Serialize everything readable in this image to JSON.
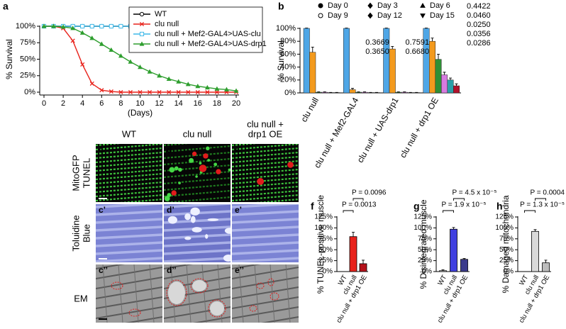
{
  "chart_data": [
    {
      "type": "line",
      "panel": "a",
      "ylabel": "% Survival",
      "xlabel": "(Days)",
      "x": [
        0,
        1,
        2,
        3,
        4,
        5,
        6,
        7,
        8,
        9,
        10,
        11,
        12,
        13,
        14,
        15,
        16,
        17,
        18,
        19,
        20
      ],
      "xlim": [
        0,
        20
      ],
      "xticks": [
        0,
        2,
        4,
        6,
        8,
        10,
        12,
        14,
        16,
        18,
        20
      ],
      "ylim": [
        0,
        100
      ],
      "yticks": [
        {
          "value": 0,
          "label": "0%"
        },
        {
          "value": 25,
          "label": "25%"
        },
        {
          "value": 50,
          "label": "50%"
        },
        {
          "value": 75,
          "label": "75%"
        },
        {
          "value": 100,
          "label": "100%"
        }
      ],
      "legend": "upper right",
      "series": [
        {
          "name": "WT",
          "color": "#000000",
          "marker": "open-circle",
          "values": [
            100,
            100,
            100,
            100,
            100,
            100,
            100,
            100,
            100,
            100,
            100,
            100,
            100,
            100,
            100,
            100,
            100,
            100,
            100,
            100,
            100
          ]
        },
        {
          "name": "clu null",
          "color": "#e8221b",
          "marker": "x",
          "values": [
            100,
            100,
            97,
            78,
            42,
            13,
            3,
            1,
            0,
            0,
            0,
            0,
            0,
            0,
            0,
            0,
            0,
            0,
            0,
            0,
            0
          ]
        },
        {
          "name": "clu null + Mef2-GAL4>UAS-clu",
          "color": "#3db8e8",
          "marker": "open-square",
          "values": [
            100,
            100,
            100,
            100,
            100,
            100,
            100,
            100,
            100,
            100,
            100,
            100,
            100,
            100,
            100,
            100,
            100,
            100,
            100,
            100,
            100
          ]
        },
        {
          "name": "clu null + Mef2-GAL4>UAS-drp1",
          "color": "#2e9e2e",
          "marker": "triangle-up",
          "values": [
            100,
            100,
            99,
            97,
            90,
            82,
            73,
            64,
            55,
            46,
            38,
            31,
            25,
            20,
            16,
            12,
            9,
            7,
            5,
            4,
            2
          ]
        }
      ]
    },
    {
      "type": "bar",
      "panel": "b",
      "ylabel": "% Survival",
      "categories": [
        "clu null",
        "clu null + Mef2-GAL4",
        "clu null + UAS-drp1",
        "clu null + drp1 OE"
      ],
      "ylim": [
        0,
        100
      ],
      "yticks": [
        {
          "value": 0,
          "label": "0%"
        },
        {
          "value": 20,
          "label": "20%"
        },
        {
          "value": 40,
          "label": "40%"
        },
        {
          "value": 60,
          "label": "60%"
        },
        {
          "value": 80,
          "label": "80%"
        },
        {
          "value": 100,
          "label": "100%"
        }
      ],
      "legend": "top",
      "series": [
        {
          "name": "Day 0",
          "color": "#4ea6e6",
          "marker": "circle",
          "values": [
            100,
            100,
            100,
            100
          ],
          "errors": [
            0.5,
            0.5,
            0.5,
            0.5
          ]
        },
        {
          "name": "Day 3",
          "color": "#f39a1d",
          "marker": "diamond",
          "values": [
            63,
            5,
            68,
            80
          ],
          "errors": [
            8,
            2,
            4,
            5
          ]
        },
        {
          "name": "Day 6",
          "color": "#2f8f35",
          "marker": "triangle-up",
          "values": [
            1,
            1,
            1,
            52
          ],
          "errors": [
            0.5,
            0.5,
            0.5,
            8
          ]
        },
        {
          "name": "Day 9",
          "color": "#d77be0",
          "marker": "open-circle",
          "values": [
            1,
            1,
            1,
            28
          ],
          "errors": [
            0.5,
            0.5,
            0.5,
            4
          ]
        },
        {
          "name": "Day 12",
          "color": "#2a9fa8",
          "marker": "diamond",
          "values": [
            0.5,
            0.5,
            0.5,
            20
          ],
          "errors": [
            0.3,
            0.3,
            0.3,
            3
          ]
        },
        {
          "name": "Day 15",
          "color": "#b3122c",
          "marker": "triangle-down",
          "values": [
            0.5,
            0.5,
            0.5,
            11
          ],
          "errors": [
            0.3,
            0.3,
            0.3,
            3
          ]
        }
      ],
      "p_values": [
        [],
        [
          "0.3669",
          "0.3650"
        ],
        [
          "0.7591",
          "0.6680"
        ],
        [
          "0.4422",
          "0.0460",
          "0.0250",
          "0.0356",
          "0.0286"
        ]
      ]
    },
    {
      "type": "bar",
      "panel": "f",
      "ylabel": "% TUNEL-positive muscle",
      "ylabel_color": "#e8221b",
      "categories": [
        "WT",
        "clu null",
        "clu null + drp1 OE"
      ],
      "values": [
        0,
        80,
        18
      ],
      "errors": [
        0,
        10,
        8
      ],
      "colors": [
        "#ffffff",
        "#e8221b",
        "#b5121b"
      ],
      "ylim": [
        0,
        125
      ],
      "yticks": [
        {
          "value": 0,
          "label": "0%"
        },
        {
          "value": 25,
          "label": "25%"
        },
        {
          "value": 50,
          "label": "50%"
        },
        {
          "value": 75,
          "label": "75%"
        },
        {
          "value": 100,
          "label": "100%"
        },
        {
          "value": 125,
          "label": "125%"
        }
      ],
      "p_values": [
        "P = 0.0013",
        "P = 0.0096"
      ]
    },
    {
      "type": "bar",
      "panel": "g",
      "ylabel": "% Disintegrated muscle",
      "ylabel_color": "#6060e0",
      "categories": [
        "WT",
        "clu null",
        "clu null + drp1 OE"
      ],
      "values": [
        2,
        97,
        28
      ],
      "errors": [
        2,
        4,
        2
      ],
      "colors": [
        "#ffffff",
        "#4040e0",
        "#3c3c8c"
      ],
      "ylim": [
        0,
        125
      ],
      "yticks": [
        {
          "value": 0,
          "label": "0%"
        },
        {
          "value": 25,
          "label": "25%"
        },
        {
          "value": 50,
          "label": "50%"
        },
        {
          "value": 75,
          "label": "75%"
        },
        {
          "value": 100,
          "label": "100%"
        },
        {
          "value": 125,
          "label": "125%"
        }
      ],
      "p_values": [
        "P = 1.9 x 10⁻⁵",
        "P = 4.5 x 10⁻⁵"
      ]
    },
    {
      "type": "bar",
      "panel": "h",
      "ylabel": "% Damaged mitochondria",
      "ylabel_color": "#8a8a8a",
      "categories": [
        "WT",
        "clu null",
        "clu null + drp1 OE"
      ],
      "values": [
        0,
        92,
        20
      ],
      "errors": [
        0,
        4,
        6
      ],
      "colors": [
        "#ffffff",
        "#d9d9d9",
        "#bdbdbd"
      ],
      "ylim": [
        0,
        125
      ],
      "yticks": [
        {
          "value": 0,
          "label": "0%"
        },
        {
          "value": 25,
          "label": "25%"
        },
        {
          "value": 50,
          "label": "50%"
        },
        {
          "value": 75,
          "label": "75%"
        },
        {
          "value": 100,
          "label": "100%"
        },
        {
          "value": 125,
          "label": "125%"
        }
      ],
      "p_values": [
        "P = 1.3 x 10⁻⁵",
        "P = 0.0004"
      ]
    }
  ],
  "images": {
    "columns": [
      [
        "WT"
      ],
      [
        "clu null"
      ],
      [
        "clu null +",
        "drp1 OE"
      ]
    ],
    "rows": [
      {
        "lines": [
          "MitoGFP",
          "TUNEL"
        ],
        "colors": [
          "#2e9e2e",
          "#e8221b"
        ]
      },
      {
        "lines": [
          "Toluidine",
          "Blue"
        ],
        "colors": [
          "#3030d0",
          "#3030d0"
        ]
      },
      {
        "lines": [
          "EM"
        ],
        "colors": [
          "#000000"
        ]
      }
    ],
    "tiles": [
      [
        "c",
        "d",
        "e"
      ],
      [
        "c’",
        "d’",
        "e’"
      ],
      [
        "c’’",
        "d’’",
        "e’’"
      ]
    ]
  }
}
